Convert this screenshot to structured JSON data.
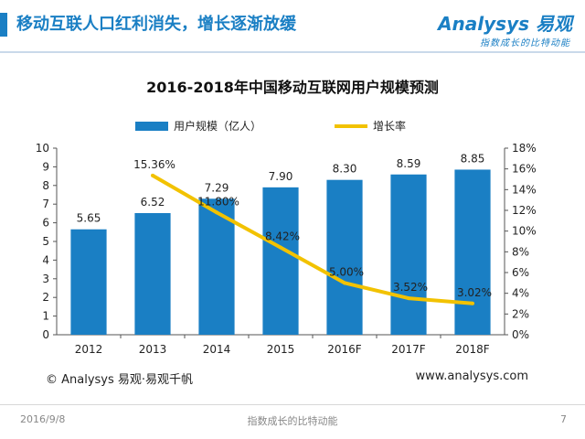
{
  "header": {
    "title": "移动互联人口红利消失，增长逐渐放缓",
    "logo_main": "Analysys 易观",
    "logo_sub": "指数成长的比特动能"
  },
  "colors": {
    "accent": "#1a7fc4",
    "bar": "#1a7fc4",
    "line": "#f2c200"
  },
  "chart_data": {
    "type": "bar",
    "title": "2016-2018年中国移动互联网用户规模预测",
    "categories": [
      "2012",
      "2013",
      "2014",
      "2015",
      "2016F",
      "2017F",
      "2018F"
    ],
    "series": [
      {
        "name": "用户规模（亿人）",
        "type": "bar",
        "axis": "left",
        "values": [
          5.65,
          6.52,
          7.29,
          7.9,
          8.3,
          8.59,
          8.85
        ],
        "labels": [
          "5.65",
          "6.52",
          "7.29",
          "7.90",
          "8.30",
          "8.59",
          "8.85"
        ]
      },
      {
        "name": "增长率",
        "type": "line",
        "axis": "right",
        "values": [
          null,
          15.36,
          11.8,
          8.42,
          5.0,
          3.52,
          3.02
        ],
        "labels": [
          "",
          "15.36%",
          "11.80%",
          "8.42%",
          "5.00%",
          "3.52%",
          "3.02%"
        ]
      }
    ],
    "y_left": {
      "lim": [
        0,
        10
      ],
      "ticks": [
        "0",
        "1",
        "2",
        "3",
        "4",
        "5",
        "6",
        "7",
        "8",
        "9",
        "10"
      ]
    },
    "y_right": {
      "lim": [
        0,
        18
      ],
      "ticks": [
        "0%",
        "2%",
        "4%",
        "6%",
        "8%",
        "10%",
        "12%",
        "14%",
        "16%",
        "18%"
      ]
    },
    "legend_position": "top",
    "grid": false
  },
  "footer": {
    "copyright": "© Analysys 易观·易观千帆",
    "website": "www.analysys.com",
    "date": "2016/9/8",
    "slogan": "指数成长的比特动能",
    "page": "7"
  }
}
